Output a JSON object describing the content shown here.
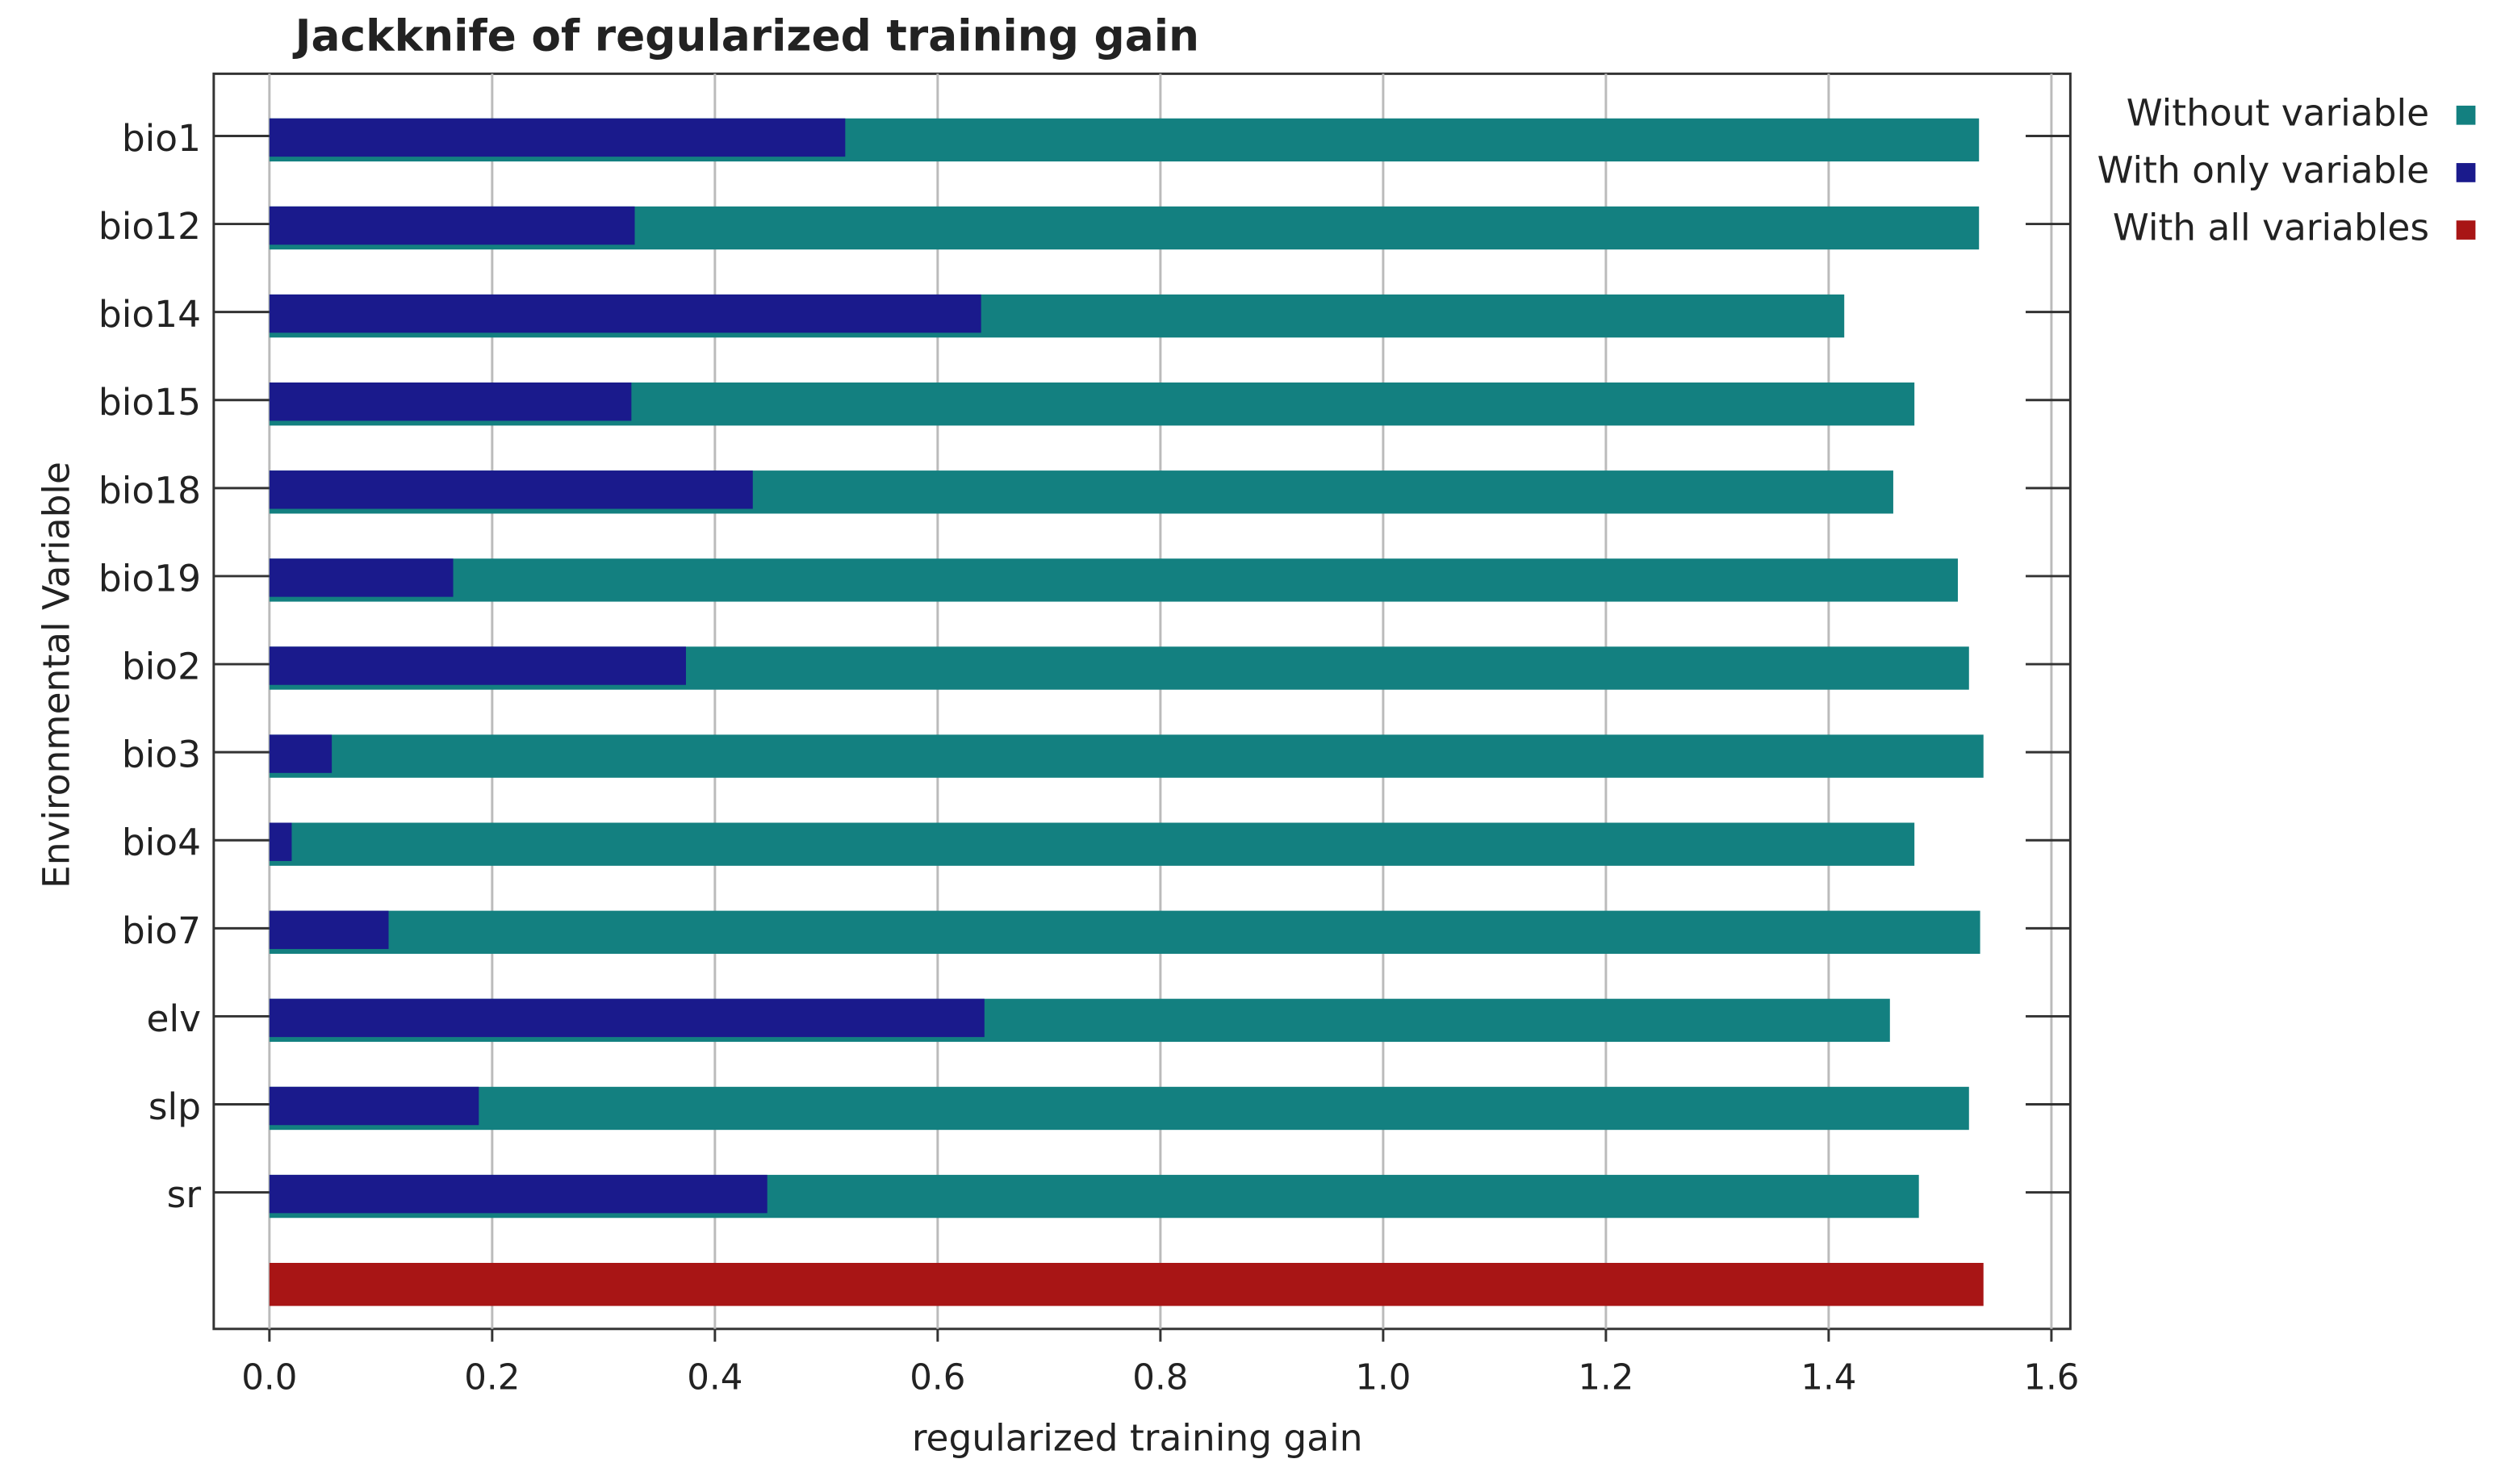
{
  "chart_data": {
    "type": "bar",
    "orientation": "horizontal",
    "title": "Jackknife of regularized training gain",
    "x_label": "regularized training gain",
    "y_label": "Environmental Variable",
    "categories": [
      "bio1",
      "bio12",
      "bio14",
      "bio15",
      "bio18",
      "bio19",
      "bio2",
      "bio3",
      "bio4",
      "bio7",
      "elv",
      "slp",
      "sr",
      null
    ],
    "series": [
      {
        "name": "Without variable",
        "color": "#138080",
        "values": [
          1.535,
          1.535,
          1.414,
          1.477,
          1.458,
          1.516,
          1.526,
          1.539,
          1.477,
          1.536,
          1.455,
          1.526,
          1.481,
          null
        ]
      },
      {
        "name": "With only variable",
        "color": "#1a1a8c",
        "values": [
          0.517,
          0.328,
          0.639,
          0.325,
          0.434,
          0.165,
          0.374,
          0.056,
          0.02,
          0.107,
          0.642,
          0.188,
          0.447,
          null
        ]
      },
      {
        "name": "With all variables",
        "color": "#a81515",
        "values": [
          null,
          null,
          null,
          null,
          null,
          null,
          null,
          null,
          null,
          null,
          null,
          null,
          null,
          1.539
        ]
      }
    ],
    "xlim": [
      -0.05,
      1.617
    ],
    "xticks": [
      {
        "value": 0,
        "label": "0.0"
      },
      0.2,
      0.4,
      0.6,
      0.8,
      {
        "value": 1,
        "label": "1.0"
      },
      1.2,
      1.4,
      1.6
    ],
    "grid": true,
    "legend": "top-right"
  }
}
